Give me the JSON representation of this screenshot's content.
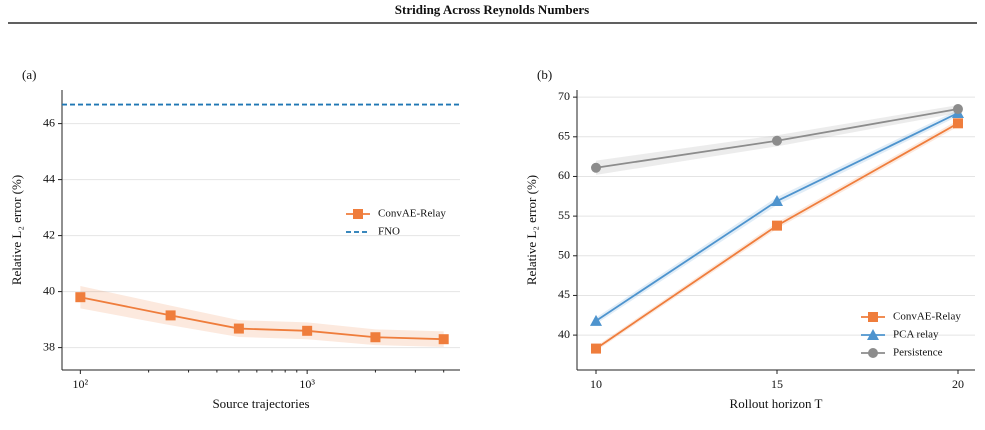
{
  "title": "Striding Across Reynolds Numbers",
  "chart_data": [
    {
      "type": "line",
      "panel": "(a)",
      "xlabel": "Source trajectories",
      "ylabel": "Relative L₂ error (%)",
      "xscale": "log",
      "xlim": [
        83,
        4720
      ],
      "xticks": [
        {
          "value": 100,
          "label": "10²"
        },
        {
          "value": 1000,
          "label": "10³"
        }
      ],
      "xminorticks": [
        200,
        300,
        400,
        500,
        600,
        700,
        800,
        900,
        2000,
        3000,
        4000
      ],
      "ylim": [
        37.2,
        47.2
      ],
      "yticks": [
        38,
        40,
        42,
        44,
        46
      ],
      "grid": true,
      "legend": "center right",
      "series": [
        {
          "name": "ConvAE-Relay",
          "color": "#ef7d3c",
          "marker": "square",
          "x": [
            100,
            250,
            500,
            1000,
            2000,
            4000
          ],
          "values": [
            39.8,
            39.15,
            38.68,
            38.6,
            38.37,
            38.3
          ],
          "error": [
            0.4,
            0.35,
            0.3,
            0.3,
            0.28,
            0.28
          ]
        },
        {
          "name": "FNO",
          "color": "#1f77b4",
          "style": "dashed",
          "hline": 46.68
        }
      ]
    },
    {
      "type": "line",
      "panel": "(b)",
      "xlabel": "Rollout horizon T",
      "ylabel": "Relative L₂ error (%)",
      "xscale": "linear",
      "xlim": [
        9.475,
        20.47
      ],
      "xticks": [
        10,
        15,
        20
      ],
      "ylim": [
        35.6,
        70.9
      ],
      "yticks": [
        40,
        45,
        50,
        55,
        60,
        65,
        70
      ],
      "grid": true,
      "legend": "lower right",
      "series": [
        {
          "name": "ConvAE-Relay",
          "color": "#ef7d3c",
          "marker": "square",
          "x": [
            10,
            15,
            20
          ],
          "values": [
            38.3,
            53.8,
            66.7
          ],
          "error": [
            0.3,
            0.4,
            0.4
          ]
        },
        {
          "name": "PCA relay",
          "color": "#4e94ce",
          "marker": "triangle",
          "x": [
            10,
            15,
            20
          ],
          "values": [
            41.8,
            56.9,
            68.0
          ],
          "error": [
            0.4,
            0.5,
            0.4
          ]
        },
        {
          "name": "Persistence",
          "color": "#8c8c8c",
          "marker": "circle",
          "x": [
            10,
            15,
            20
          ],
          "values": [
            61.1,
            64.5,
            68.5
          ],
          "error": [
            0.9,
            0.7,
            0.5
          ]
        }
      ]
    }
  ]
}
